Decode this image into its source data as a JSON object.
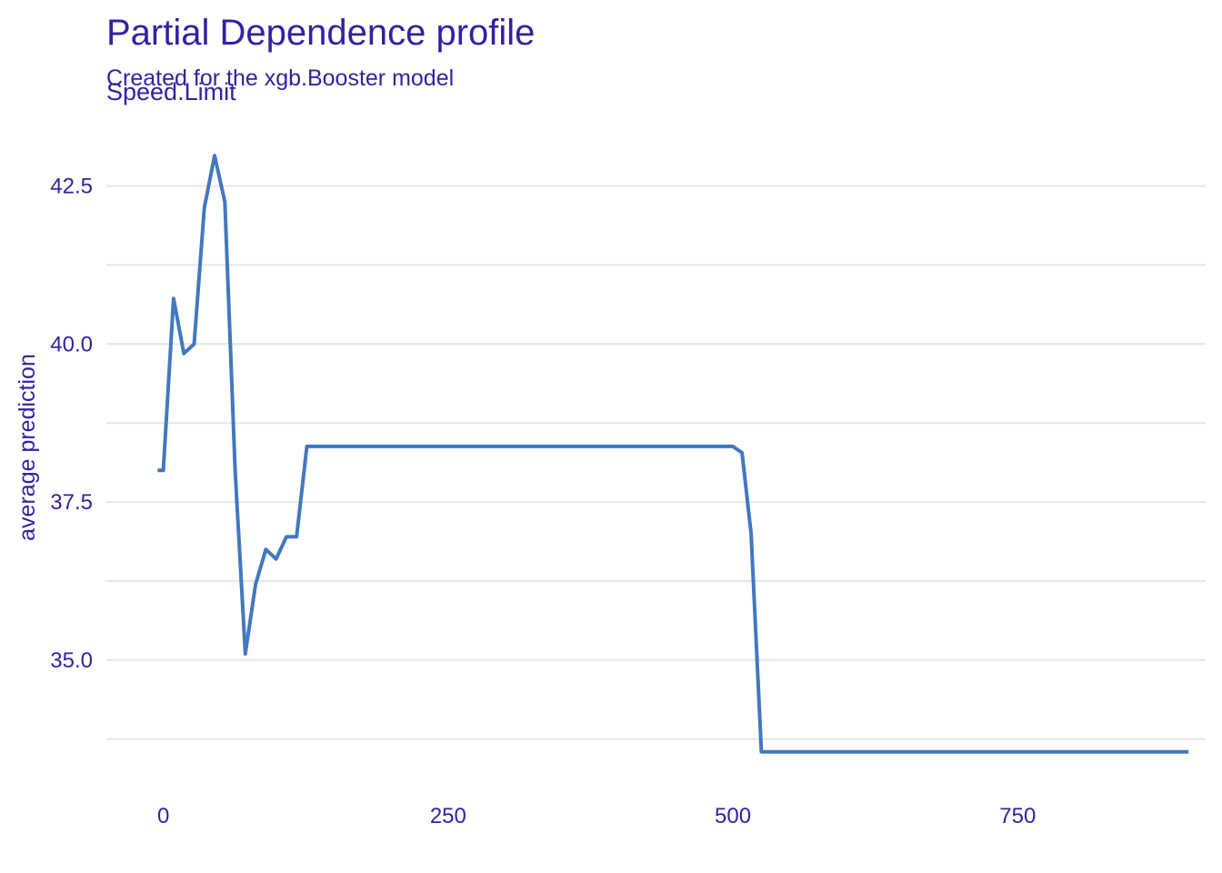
{
  "colors": {
    "text": "#371ea3",
    "line": "#4378bf",
    "grid": "#e6e6e6"
  },
  "chart_data": {
    "type": "line",
    "title": "Partial Dependence profile",
    "subtitle": "Created for the xgb.Booster model",
    "panel_label": "Speed.Limit",
    "xlabel": "",
    "ylabel": "average prediction",
    "x_ticks": [
      0,
      250,
      500,
      750
    ],
    "x_tick_labels": [
      "0",
      "250",
      "500",
      "750"
    ],
    "y_ticks": [
      35.0,
      37.5,
      40.0,
      42.5
    ],
    "y_tick_labels": [
      "35.0",
      "37.5",
      "40.0",
      "42.5"
    ],
    "xlim": [
      -50,
      915
    ],
    "ylim": [
      33.1,
      43.6
    ],
    "grid": true,
    "series": [
      {
        "x": [
          -5,
          0,
          9,
          18,
          27,
          36,
          45,
          54,
          63,
          72,
          81,
          90,
          99,
          108,
          117,
          126,
          135,
          500,
          508,
          516,
          525,
          900
        ],
        "y": [
          38.0,
          38.0,
          40.72,
          39.85,
          40.0,
          42.15,
          42.98,
          42.25,
          38.0,
          35.1,
          36.2,
          36.75,
          36.6,
          36.95,
          36.95,
          38.38,
          38.38,
          38.38,
          38.28,
          37.0,
          33.55,
          33.55
        ]
      }
    ]
  }
}
